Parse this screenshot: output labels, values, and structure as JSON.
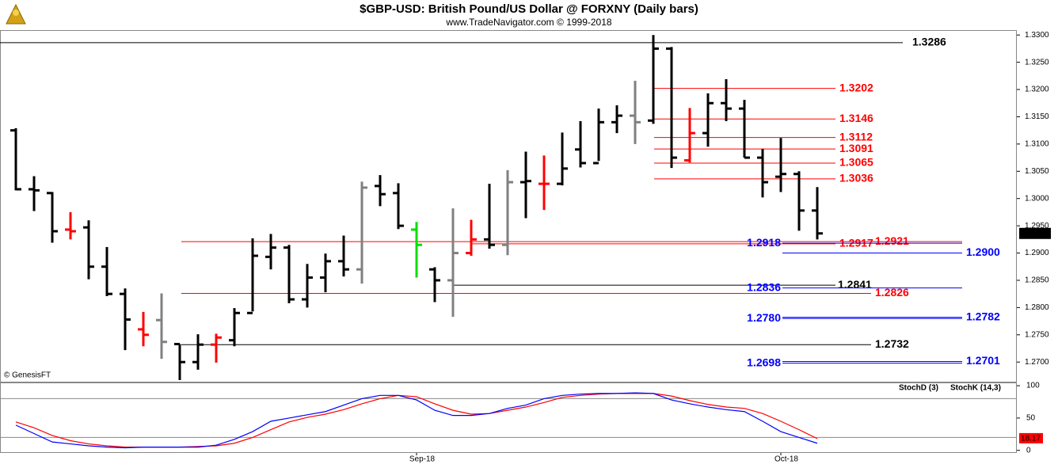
{
  "chart_data": [
    {
      "type": "ohlc",
      "title": "$GBP-USD:  British Pound/US Dollar @ FORXNY  (Daily bars)",
      "subtitle": "www.TradeNavigator.com © 1999-2018",
      "watermark": "© GenesisFT",
      "categories": [
        null,
        null,
        null,
        null,
        null,
        null,
        null,
        null,
        null,
        null,
        null,
        null,
        null,
        null,
        null,
        null,
        null,
        null,
        null,
        null,
        null,
        null,
        "Sep-18",
        null,
        null,
        null,
        null,
        null,
        null,
        null,
        null,
        null,
        null,
        null,
        null,
        null,
        null,
        null,
        null,
        null,
        null,
        null,
        "Oct-18",
        null,
        null
      ],
      "open": [
        1.3125,
        1.3017,
        1.301,
        1.2943,
        1.2947,
        1.2875,
        1.2825,
        1.276,
        1.2777,
        1.2733,
        1.27,
        1.2732,
        1.274,
        1.279,
        1.2893,
        1.291,
        1.2815,
        1.2855,
        1.2885,
        1.287,
        1.3023,
        1.301,
        1.2943,
        1.287,
        1.285,
        1.29,
        1.2925,
        1.2915,
        1.303,
        1.3027,
        1.3027,
        1.309,
        1.3065,
        1.314,
        1.3152,
        1.3143,
        1.3275,
        1.307,
        1.312,
        1.3175,
        1.3165,
        1.3075,
        1.304,
        1.3045,
        1.2978
      ],
      "high": [
        1.3129,
        1.3041,
        1.3012,
        1.2975,
        1.296,
        1.2911,
        1.2835,
        1.2792,
        1.2826,
        1.2733,
        1.2751,
        1.2752,
        1.2799,
        1.2927,
        1.2935,
        1.2915,
        1.288,
        1.2899,
        1.2932,
        1.3031,
        1.3043,
        1.3028,
        1.2957,
        1.2874,
        1.2982,
        1.2961,
        1.3027,
        1.3052,
        1.3086,
        1.3079,
        1.3121,
        1.3142,
        1.3165,
        1.3171,
        1.3216,
        1.33,
        1.3278,
        1.3166,
        1.3193,
        1.3219,
        1.3181,
        1.3091,
        1.3111,
        1.305,
        1.3021
      ],
      "low": [
        1.3015,
        1.2977,
        1.2919,
        1.2925,
        1.2852,
        1.2821,
        1.2722,
        1.2729,
        1.2706,
        1.2667,
        1.2686,
        1.2699,
        1.2729,
        1.2793,
        1.287,
        1.2808,
        1.28,
        1.2828,
        1.2857,
        1.2844,
        1.2986,
        1.2944,
        1.2855,
        1.281,
        1.2783,
        1.2895,
        1.2908,
        1.2896,
        1.2964,
        1.2979,
        1.3024,
        1.3057,
        1.3069,
        1.312,
        1.31,
        1.3137,
        1.3056,
        1.3066,
        1.3095,
        1.3142,
        1.3075,
        1.3002,
        1.3012,
        1.2941,
        1.2925
      ],
      "close": [
        1.3017,
        1.3015,
        1.294,
        1.294,
        1.2875,
        1.2825,
        1.2778,
        1.275,
        1.2737,
        1.27,
        1.2732,
        1.2745,
        1.279,
        1.2895,
        1.291,
        1.2815,
        1.2855,
        1.2885,
        1.287,
        1.302,
        1.3008,
        1.295,
        1.2915,
        1.285,
        1.29,
        1.2925,
        1.2915,
        1.303,
        1.3032,
        1.3027,
        1.3055,
        1.3065,
        1.314,
        1.3152,
        1.314,
        1.3275,
        1.3075,
        1.312,
        1.3175,
        1.3165,
        1.3075,
        1.303,
        1.3045,
        1.2978,
        1.2936
      ],
      "bar_colors": [
        "#000000",
        "#000000",
        "#000000",
        "#ff0000",
        "#000000",
        "#000000",
        "#000000",
        "#ff0000",
        "#808080",
        "#000000",
        "#000000",
        "#ff0000",
        "#000000",
        "#000000",
        "#000000",
        "#000000",
        "#000000",
        "#000000",
        "#000000",
        "#808080",
        "#000000",
        "#000000",
        "#00e000",
        "#000000",
        "#808080",
        "#ff0000",
        "#000000",
        "#808080",
        "#000000",
        "#ff0000",
        "#000000",
        "#000000",
        "#000000",
        "#000000",
        "#808080",
        "#000000",
        "#000000",
        "#ff0000",
        "#000000",
        "#000000",
        "#000000",
        "#000000",
        "#000000",
        "#000000",
        "#000000"
      ],
      "ylim": [
        1.2664,
        1.3309
      ],
      "yticks": [
        {
          "value": 1.33,
          "label": "1.3300"
        },
        {
          "value": 1.325,
          "label": "1.3250"
        },
        {
          "value": 1.32,
          "label": "1.3200"
        },
        {
          "value": 1.315,
          "label": "1.3150"
        },
        {
          "value": 1.31,
          "label": "1.3100"
        },
        {
          "value": 1.305,
          "label": "1.3050"
        },
        {
          "value": 1.3,
          "label": "1.3000"
        },
        {
          "value": 1.295,
          "label": "1.2950"
        },
        {
          "value": 1.29,
          "label": "1.2900"
        },
        {
          "value": 1.285,
          "label": "1.2850"
        },
        {
          "value": 1.28,
          "label": "1.2800"
        },
        {
          "value": 1.275,
          "label": "1.2750"
        },
        {
          "value": 1.27,
          "label": "1.2700"
        }
      ],
      "last_price": 1.2936,
      "levels": [
        {
          "value": 1.3286,
          "label": "1.3286",
          "color": "#000000"
        },
        {
          "value": 1.3202,
          "label": "1.3202",
          "color": "#ff0000"
        },
        {
          "value": 1.3146,
          "label": "1.3146",
          "color": "#ff0000"
        },
        {
          "value": 1.3112,
          "label": "1.3112",
          "color": "#ff0000"
        },
        {
          "value": 1.3091,
          "label": "1.3091",
          "color": "#ff0000"
        },
        {
          "value": 1.3065,
          "label": "1.3065",
          "color": "#ff0000"
        },
        {
          "value": 1.3036,
          "label": "1.3036",
          "color": "#ff0000"
        },
        {
          "value": 1.2921,
          "label": "1.2921",
          "color": "#ff0000"
        },
        {
          "value": 1.2917,
          "label": "1.2917",
          "color": "#ff0000"
        },
        {
          "value": 1.2918,
          "label": "1.2918",
          "color": "#0000ff"
        },
        {
          "value": 1.29,
          "label": "1.2900",
          "color": "#0000ff"
        },
        {
          "value": 1.2841,
          "label": "1.2841",
          "color": "#000000"
        },
        {
          "value": 1.2836,
          "label": "1.2836",
          "color": "#0000ff"
        },
        {
          "value": 1.2826,
          "label": "1.2826",
          "color": "#ff0000"
        },
        {
          "value": 1.278,
          "label": "1.2780",
          "color": "#0000ff"
        },
        {
          "value": 1.2782,
          "label": "1.2782",
          "color": "#0000ff"
        },
        {
          "value": 1.2732,
          "label": "1.2732",
          "color": "#000000"
        },
        {
          "value": 1.2698,
          "label": "1.2698",
          "color": "#0000ff"
        },
        {
          "value": 1.2701,
          "label": "1.2701",
          "color": "#0000ff"
        }
      ]
    },
    {
      "type": "line",
      "series": [
        {
          "name": "StochD (3)",
          "color": "#ff0000",
          "values": [
            44,
            35,
            23,
            15,
            10,
            7,
            5,
            5,
            5,
            5,
            6,
            7,
            11,
            20,
            32,
            44,
            51,
            56,
            63,
            72,
            80,
            85,
            83,
            72,
            62,
            56,
            57,
            62,
            67,
            74,
            82,
            85,
            87,
            88,
            88,
            88,
            84,
            77,
            71,
            67,
            65,
            57,
            45,
            32,
            18.17
          ]
        },
        {
          "name": "StochK (14,3)",
          "color": "#0000ff",
          "values": [
            39,
            26,
            13,
            10,
            7,
            5,
            4,
            5,
            5,
            5,
            5,
            8,
            17,
            29,
            45,
            50,
            55,
            60,
            70,
            80,
            85,
            85,
            78,
            62,
            54,
            54,
            57,
            65,
            70,
            80,
            85,
            87,
            88,
            88,
            89,
            88,
            78,
            72,
            67,
            63,
            60,
            45,
            29,
            20,
            11
          ]
        }
      ],
      "ylim": [
        -4,
        105
      ],
      "yticks": [
        0,
        50,
        100
      ],
      "reference_lines": [
        80,
        20
      ]
    }
  ]
}
